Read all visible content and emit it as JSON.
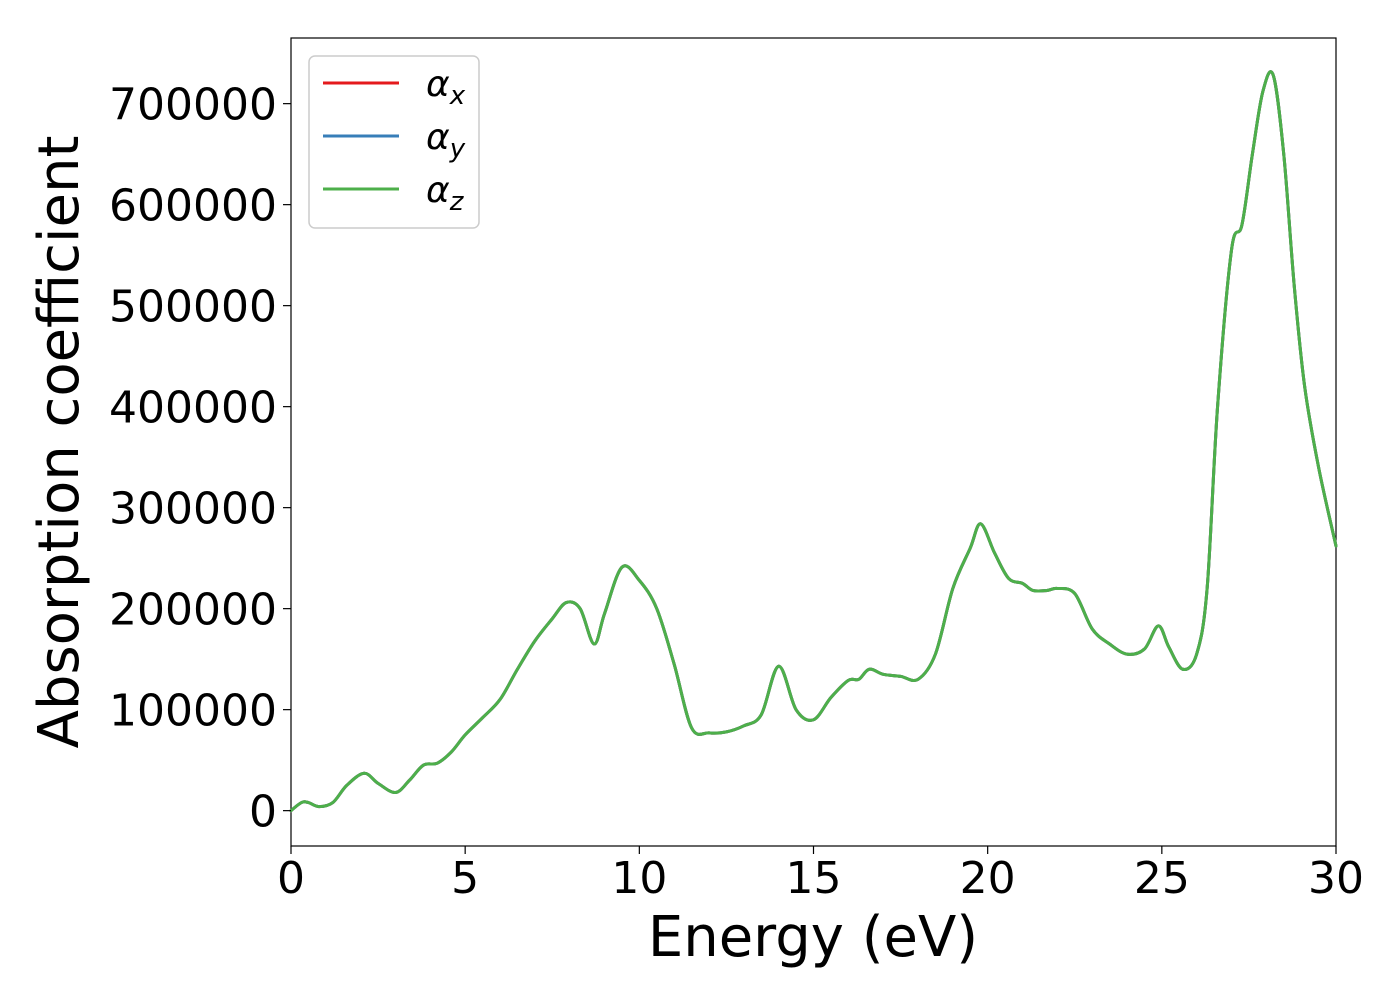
{
  "chart_data": {
    "type": "line",
    "xlabel": "Energy (eV)",
    "ylabel": "Absorption coefficient",
    "xlim": [
      0,
      30
    ],
    "ylim": [
      -35000,
      765000
    ],
    "x_ticks": [
      "0",
      "5",
      "10",
      "15",
      "20",
      "25",
      "30"
    ],
    "y_ticks": [
      "0",
      "100000",
      "200000",
      "300000",
      "400000",
      "500000",
      "600000",
      "700000"
    ],
    "grid": false,
    "legend_position": "top-left",
    "x": [
      0,
      0.3,
      0.5,
      0.8,
      1.2,
      1.6,
      2.1,
      2.5,
      3.0,
      3.4,
      3.8,
      4.2,
      4.6,
      5.0,
      5.5,
      6.0,
      6.5,
      7.0,
      7.5,
      7.9,
      8.3,
      8.7,
      9.0,
      9.5,
      10.0,
      10.5,
      11.0,
      11.5,
      12.0,
      12.5,
      13.0,
      13.5,
      14.0,
      14.5,
      15.0,
      15.5,
      16.0,
      16.3,
      16.6,
      17.0,
      17.5,
      18.0,
      18.5,
      19.0,
      19.5,
      19.8,
      20.2,
      20.6,
      21.0,
      21.3,
      21.7,
      22.0,
      22.5,
      23.0,
      23.5,
      24.0,
      24.5,
      24.9,
      25.2,
      25.6,
      26.0,
      26.3,
      26.6,
      27.0,
      27.3,
      27.6,
      27.9,
      28.2,
      28.5,
      28.8,
      29.1,
      29.5,
      30.0
    ],
    "series": [
      {
        "name": "α_x",
        "color": "#e41a1c",
        "y": [
          0,
          8000,
          8000,
          4000,
          8000,
          25000,
          37000,
          27000,
          18000,
          30000,
          45000,
          47000,
          58000,
          75000,
          92000,
          110000,
          140000,
          168000,
          190000,
          206000,
          200000,
          165000,
          195000,
          241000,
          228000,
          200000,
          145000,
          82000,
          77000,
          78000,
          84000,
          95000,
          143000,
          100000,
          90000,
          112000,
          129000,
          130000,
          140000,
          135000,
          133000,
          130000,
          155000,
          220000,
          260000,
          284000,
          255000,
          230000,
          225000,
          218000,
          218000,
          220000,
          215000,
          180000,
          165000,
          155000,
          160000,
          183000,
          162000,
          140000,
          155000,
          220000,
          400000,
          555000,
          580000,
          650000,
          712000,
          728000,
          650000,
          520000,
          420000,
          340000,
          262000
        ]
      },
      {
        "name": "α_y",
        "color": "#377eb8",
        "y": [
          0,
          8000,
          8000,
          4000,
          8000,
          25000,
          37000,
          27000,
          18000,
          30000,
          45000,
          47000,
          58000,
          75000,
          92000,
          110000,
          140000,
          168000,
          190000,
          206000,
          200000,
          165000,
          195000,
          241000,
          228000,
          200000,
          145000,
          82000,
          77000,
          78000,
          84000,
          95000,
          143000,
          100000,
          90000,
          112000,
          129000,
          130000,
          140000,
          135000,
          133000,
          130000,
          155000,
          220000,
          260000,
          284000,
          255000,
          230000,
          225000,
          218000,
          218000,
          220000,
          215000,
          180000,
          165000,
          155000,
          160000,
          183000,
          162000,
          140000,
          155000,
          220000,
          400000,
          555000,
          580000,
          650000,
          712000,
          728000,
          650000,
          520000,
          420000,
          340000,
          262000
        ]
      },
      {
        "name": "α_z",
        "color": "#4daf4a",
        "y": [
          0,
          8000,
          8000,
          4000,
          8000,
          25000,
          37000,
          27000,
          18000,
          30000,
          45000,
          47000,
          58000,
          75000,
          92000,
          110000,
          140000,
          168000,
          190000,
          206000,
          200000,
          165000,
          195000,
          241000,
          228000,
          200000,
          145000,
          82000,
          77000,
          78000,
          84000,
          95000,
          143000,
          100000,
          90000,
          112000,
          129000,
          130000,
          140000,
          135000,
          133000,
          130000,
          155000,
          220000,
          260000,
          284000,
          255000,
          230000,
          225000,
          218000,
          218000,
          220000,
          215000,
          180000,
          165000,
          155000,
          160000,
          183000,
          162000,
          140000,
          155000,
          220000,
          400000,
          555000,
          580000,
          650000,
          712000,
          728000,
          650000,
          520000,
          420000,
          340000,
          262000
        ]
      }
    ],
    "legend": [
      {
        "symbol": "α",
        "sub": "x"
      },
      {
        "symbol": "α",
        "sub": "y"
      },
      {
        "symbol": "α",
        "sub": "z"
      }
    ]
  }
}
